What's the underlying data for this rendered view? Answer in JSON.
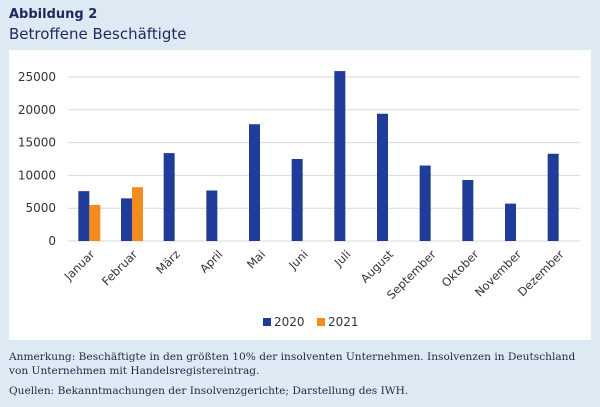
{
  "figure": {
    "label": "Abbildung 2",
    "title": "Betroffene Beschäftigte"
  },
  "chart_data": {
    "type": "bar",
    "title": "",
    "xlabel": "",
    "ylabel": "",
    "ylim": [
      0,
      25000
    ],
    "yticks": [
      "0",
      "5000",
      "10000",
      "15000",
      "20000",
      "25000"
    ],
    "grid": true,
    "legend_position": "bottom",
    "categories": [
      "Januar",
      "Februar",
      "März",
      "April",
      "Mai",
      "Juni",
      "Juli",
      "August",
      "September",
      "Oktober",
      "November",
      "Dezember"
    ],
    "series": [
      {
        "name": "2020",
        "color": "#1f3c99",
        "values": [
          7600,
          6500,
          13400,
          7700,
          17800,
          12500,
          25900,
          19400,
          11500,
          9300,
          5700,
          13300
        ]
      },
      {
        "name": "2021",
        "color": "#f28c1e",
        "values": [
          5500,
          8200,
          null,
          null,
          null,
          null,
          null,
          null,
          null,
          null,
          null,
          null
        ]
      }
    ]
  },
  "notes": {
    "anmerkung": "Anmerkung: Beschäftigte in den größten 10% der insolventen Unternehmen. Insolvenzen in Deutschland von Unternehmen mit Handelsregistereintrag.",
    "quellen": "Quellen: Bekanntmachungen der Insolvenzgerichte; Darstellung des IWH."
  }
}
